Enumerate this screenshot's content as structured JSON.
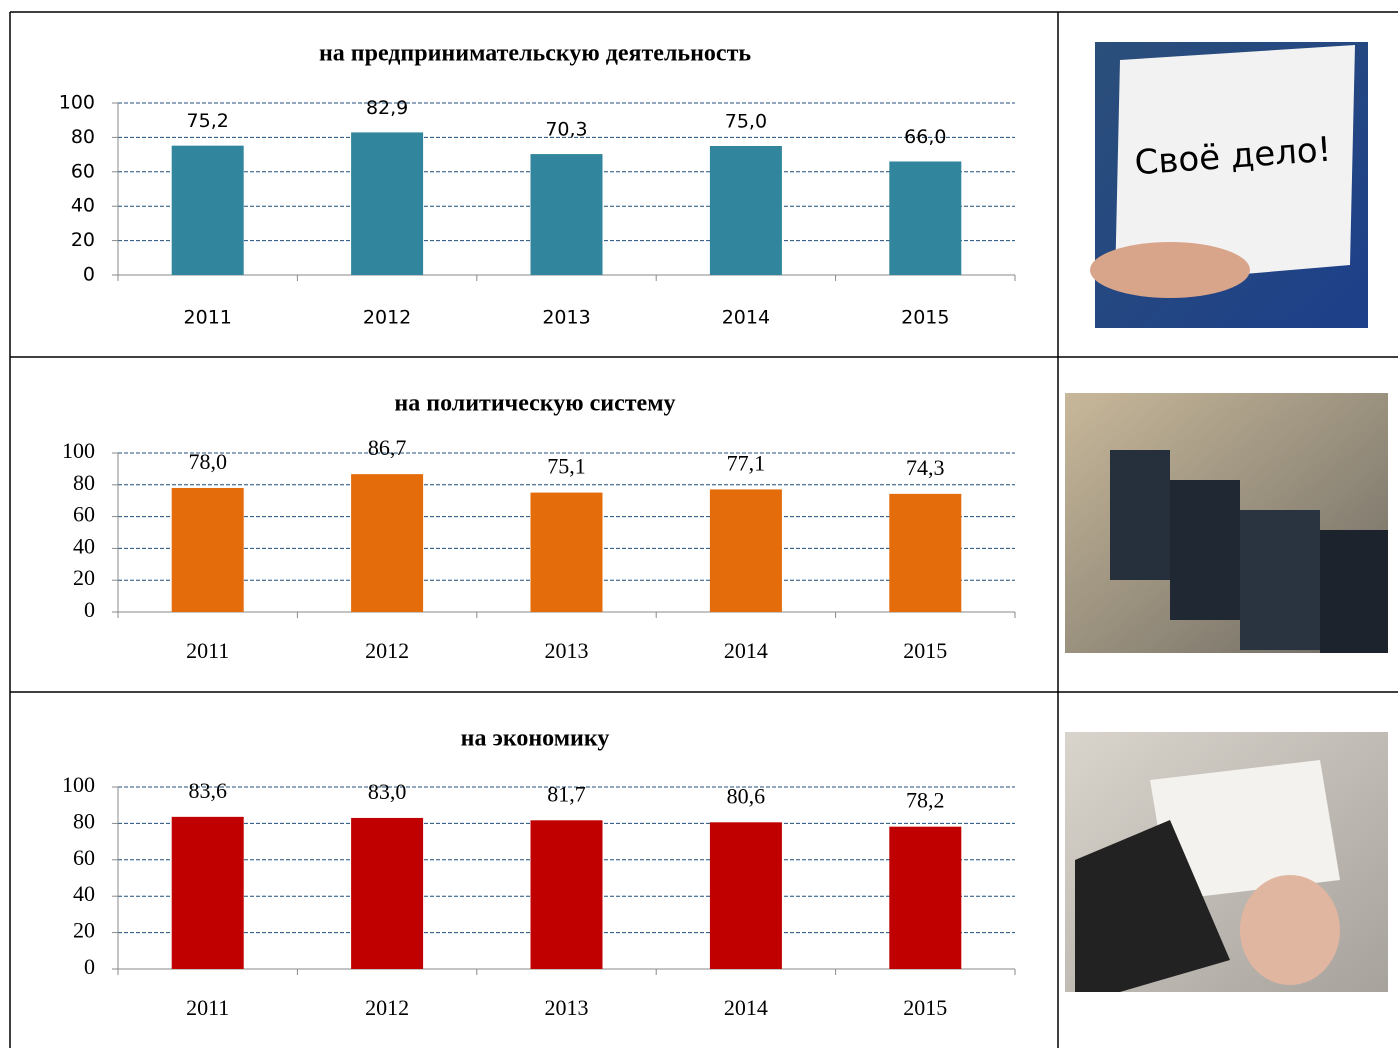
{
  "chart_data": [
    {
      "type": "bar",
      "title": "на предпринимательскую деятельность",
      "categories": [
        "2011",
        "2012",
        "2013",
        "2014",
        "2015"
      ],
      "values": [
        75.2,
        82.9,
        70.3,
        75.0,
        66.0
      ],
      "value_labels": [
        "75,2",
        "82,9",
        "70,3",
        "75,0",
        "66,0"
      ],
      "color": "#31859c",
      "ylim": [
        0,
        100
      ],
      "yticks": [
        0,
        20,
        40,
        60,
        80,
        100
      ],
      "grid": true
    },
    {
      "type": "bar",
      "title": "на политическую систему",
      "categories": [
        "2011",
        "2012",
        "2013",
        "2014",
        "2015"
      ],
      "values": [
        78.0,
        86.7,
        75.1,
        77.1,
        74.3
      ],
      "value_labels": [
        "78,0",
        "86,7",
        "75,1",
        "77,1",
        "74,3"
      ],
      "color": "#e46c0a",
      "ylim": [
        0,
        100
      ],
      "yticks": [
        0,
        20,
        40,
        60,
        80,
        100
      ],
      "grid": true
    },
    {
      "type": "bar",
      "title": "на экономику",
      "categories": [
        "2011",
        "2012",
        "2013",
        "2014",
        "2015"
      ],
      "values": [
        83.6,
        83.0,
        81.7,
        80.6,
        78.2
      ],
      "value_labels": [
        "83,6",
        "83,0",
        "81,7",
        "80,6",
        "78,2"
      ],
      "color": "#c00000",
      "ylim": [
        0,
        100
      ],
      "yticks": [
        0,
        20,
        40,
        60,
        80,
        100
      ],
      "grid": true
    }
  ],
  "photo_caption": "Своё дело!"
}
